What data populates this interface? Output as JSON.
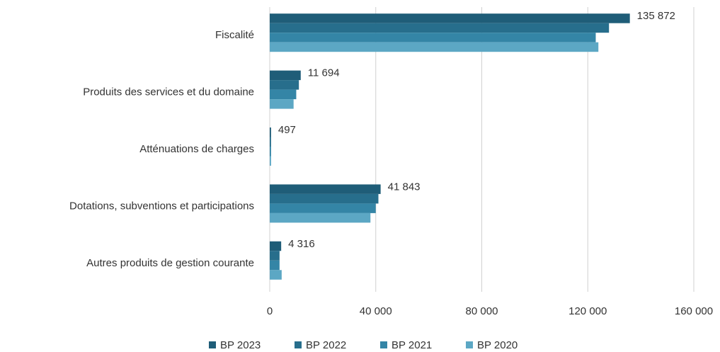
{
  "chart_data": {
    "type": "hbar",
    "categories": [
      "Fiscalité",
      "Produits des services et du domaine",
      "Atténuations de charges",
      "Dotations, subventions et participations",
      "Autres produits de gestion courante"
    ],
    "series": [
      {
        "name": "BP 2023",
        "color": "#1f5d78",
        "values": [
          135872,
          11694,
          497,
          41843,
          4316
        ],
        "value_labels": [
          "135 872",
          "11 694",
          "497",
          "41 843",
          "4 316"
        ]
      },
      {
        "name": "BP 2022",
        "color": "#276e8c",
        "values": [
          128000,
          11000,
          500,
          41000,
          3700
        ]
      },
      {
        "name": "BP 2021",
        "color": "#3485a6",
        "values": [
          123000,
          10000,
          500,
          40000,
          3700
        ]
      },
      {
        "name": "BP 2020",
        "color": "#5ca7c4",
        "values": [
          124000,
          9000,
          500,
          38000,
          4500
        ]
      }
    ],
    "xlim": [
      0,
      160000
    ],
    "xticks": [
      0,
      {
        "value": 40000,
        "label": "40 000"
      },
      {
        "value": 80000,
        "label": "80 000"
      },
      {
        "value": 120000,
        "label": "120 000"
      },
      {
        "value": 160000,
        "label": "160 000"
      }
    ],
    "grid": true,
    "legend": "bottom"
  }
}
